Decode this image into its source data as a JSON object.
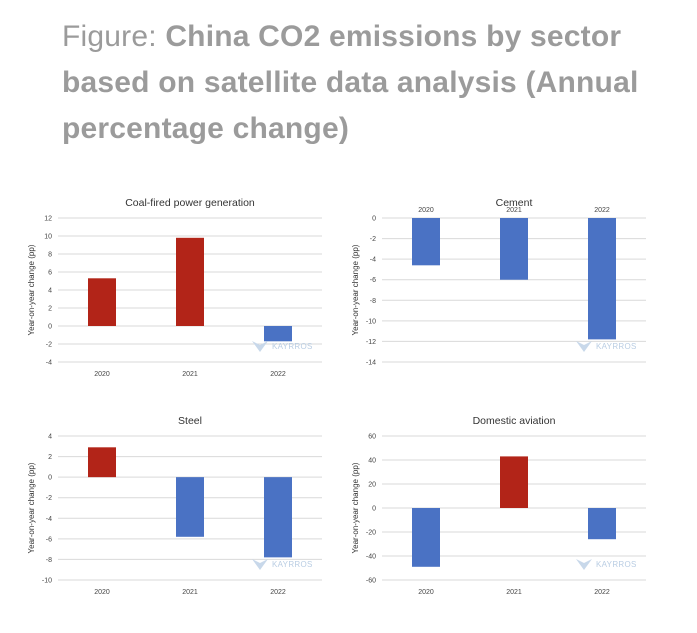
{
  "figure": {
    "title_prefix": "Figure: ",
    "title_bold": "China CO2 emissions by sector based on satellite data analysis (Annual percentage change)"
  },
  "watermark": "KAYRROS",
  "colors": {
    "positive": "#b22418",
    "negative": "#4a72c4",
    "grid": "#d9d9d9"
  },
  "chart_data": [
    {
      "type": "bar",
      "title": "Coal-fired power generation",
      "ylabel": "Year-on-year change (pp)",
      "categories": [
        "2020",
        "2021",
        "2022"
      ],
      "values": [
        5.3,
        9.8,
        -1.7
      ],
      "ylim": [
        -4,
        12
      ],
      "yticks": [
        12,
        10,
        8,
        6,
        4,
        2,
        0,
        -2,
        -4
      ],
      "x_axis_position": "bottom",
      "grid": true
    },
    {
      "type": "bar",
      "title": "Cement",
      "ylabel": "Year-on-year change (pp)",
      "categories": [
        "2020",
        "2021",
        "2022"
      ],
      "values": [
        -4.6,
        -6.0,
        -11.8
      ],
      "ylim": [
        -14,
        0
      ],
      "yticks": [
        0,
        -2,
        -4,
        -6,
        -8,
        -10,
        -12,
        -14
      ],
      "x_axis_position": "top",
      "grid": true
    },
    {
      "type": "bar",
      "title": "Steel",
      "ylabel": "Year-on-year change (pp)",
      "categories": [
        "2020",
        "2021",
        "2022"
      ],
      "values": [
        2.9,
        -5.8,
        -7.8
      ],
      "ylim": [
        -10,
        4
      ],
      "yticks": [
        4,
        2,
        0,
        -2,
        -4,
        -6,
        -8,
        -10
      ],
      "x_axis_position": "bottom",
      "grid": true
    },
    {
      "type": "bar",
      "title": "Domestic aviation",
      "ylabel": "Year-on-year change (pp)",
      "categories": [
        "2020",
        "2021",
        "2022"
      ],
      "values": [
        -49,
        43,
        -26
      ],
      "ylim": [
        -60,
        60
      ],
      "yticks": [
        60,
        40,
        20,
        0,
        -20,
        -40,
        -60
      ],
      "x_axis_position": "bottom",
      "grid": true
    }
  ]
}
